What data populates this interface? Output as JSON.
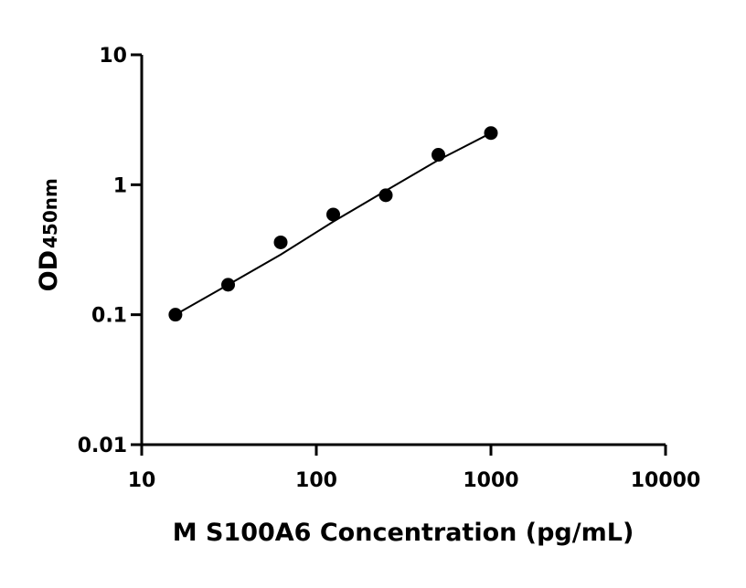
{
  "chart_data": {
    "type": "scatter",
    "x_label": "M S100A6 Concentration (pg/mL)",
    "y_label": "OD",
    "y_label_sub": "450nm",
    "log_x": true,
    "log_y": true,
    "color": "#000000",
    "xlim": [
      10,
      10000
    ],
    "xticks": [
      10,
      100,
      1000,
      10000
    ],
    "ylim": [
      0.01,
      10
    ],
    "yticks": [
      0.01,
      0.1,
      1,
      10
    ],
    "x": [
      15.6,
      31.25,
      62.5,
      125,
      250,
      500,
      1000
    ],
    "values": [
      0.1,
      0.17,
      0.36,
      0.59,
      0.83,
      1.7,
      2.5
    ],
    "curve": {
      "x": [
        15.6,
        31.25,
        62.5,
        125,
        250,
        500,
        1000
      ],
      "values": [
        0.1,
        0.17,
        0.29,
        0.52,
        0.9,
        1.55,
        2.5
      ]
    }
  }
}
